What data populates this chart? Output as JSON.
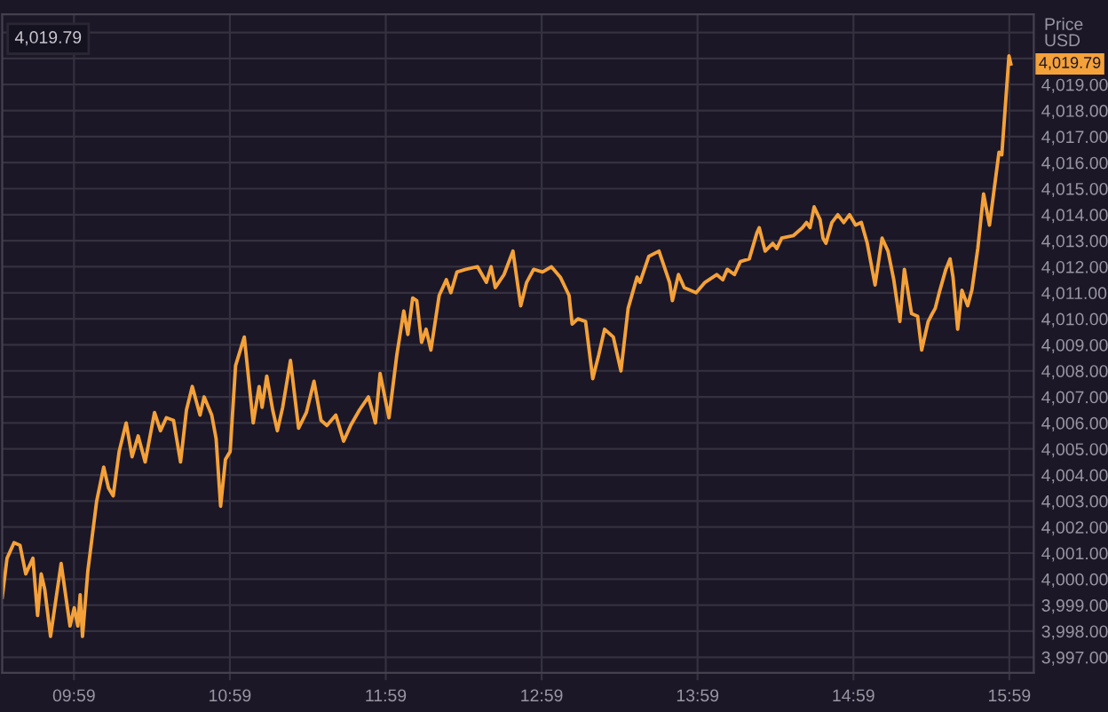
{
  "chart_data": {
    "type": "line",
    "ylabel": "Price\nUSD",
    "annotations": [
      "4,019.79",
      {
        "text": "4,019.79",
        "y": 4019.79
      }
    ],
    "x": [
      9.523,
      9.554,
      9.599,
      9.637,
      9.674,
      9.72,
      9.75,
      9.773,
      9.796,
      9.833,
      9.901,
      9.958,
      9.985,
      10.008,
      10.023,
      10.038,
      10.072,
      10.129,
      10.174,
      10.205,
      10.235,
      10.273,
      10.318,
      10.356,
      10.395,
      10.44,
      10.5,
      10.538,
      10.576,
      10.622,
      10.667,
      10.705,
      10.742,
      10.792,
      10.818,
      10.867,
      10.895,
      10.924,
      10.955,
      10.985,
      11.02,
      11.076,
      11.133,
      11.171,
      11.19,
      11.22,
      11.258,
      11.288,
      11.322,
      11.372,
      11.424,
      11.474,
      11.523,
      11.568,
      11.606,
      11.663,
      11.713,
      11.758,
      11.815,
      11.872,
      11.917,
      11.947,
      12.004,
      12.054,
      12.099,
      12.125,
      12.156,
      12.182,
      12.213,
      12.242,
      12.273,
      12.326,
      12.372,
      12.401,
      12.44,
      12.497,
      12.572,
      12.629,
      12.659,
      12.686,
      12.742,
      12.799,
      12.849,
      12.887,
      12.932,
      12.989,
      13.046,
      13.103,
      13.159,
      13.179,
      13.216,
      13.265,
      13.311,
      13.349,
      13.387,
      13.443,
      13.492,
      13.538,
      13.595,
      13.614,
      13.671,
      13.736,
      13.804,
      13.822,
      13.861,
      13.898,
      13.974,
      14.031,
      14.106,
      14.145,
      14.174,
      14.22,
      14.258,
      14.315,
      14.364,
      14.379,
      14.417,
      14.466,
      14.492,
      14.523,
      14.599,
      14.656,
      14.682,
      14.705,
      14.731,
      14.77,
      14.788,
      14.807,
      14.845,
      14.883,
      14.921,
      14.958,
      14.997,
      15.034,
      15.072,
      15.122,
      15.167,
      15.205,
      15.242,
      15.281,
      15.31,
      15.356,
      15.395,
      15.421,
      15.463,
      15.489,
      15.508,
      15.538,
      15.576,
      15.603,
      15.622,
      15.652,
      15.679,
      15.716,
      15.743,
      15.781,
      15.818,
      15.856,
      15.917,
      15.935,
      15.981,
      15.993
    ],
    "series": [
      {
        "color": "#f4a13a",
        "values": [
          3999.3,
          4000.8,
          4001.4,
          4001.3,
          4000.2,
          4000.8,
          3998.6,
          4000.2,
          3999.6,
          3997.8,
          4000.6,
          3998.2,
          3998.9,
          3998.2,
          3999.4,
          3997.8,
          4000.3,
          4003.0,
          4004.3,
          4003.5,
          4003.2,
          4004.9,
          4006.0,
          4004.7,
          4005.5,
          4004.5,
          4006.4,
          4005.7,
          4006.2,
          4006.1,
          4004.5,
          4006.5,
          4007.4,
          4006.3,
          4007.0,
          4006.3,
          4005.4,
          4002.8,
          4004.6,
          4004.9,
          4008.2,
          4009.3,
          4006.0,
          4007.4,
          4006.6,
          4007.8,
          4006.5,
          4005.7,
          4006.6,
          4008.4,
          4005.8,
          4006.4,
          4007.6,
          4006.1,
          4005.9,
          4006.3,
          4005.3,
          4005.9,
          4006.5,
          4007.0,
          4006.0,
          4007.9,
          4006.2,
          4008.6,
          4010.3,
          4009.4,
          4010.8,
          4010.7,
          4009.1,
          4009.6,
          4008.8,
          4010.9,
          4011.5,
          4011.0,
          4011.8,
          4011.9,
          4012.0,
          4011.4,
          4012.0,
          4011.2,
          4011.7,
          4012.6,
          4010.5,
          4011.4,
          4011.9,
          4011.8,
          4012.0,
          4011.6,
          4010.9,
          4009.8,
          4010.0,
          4009.9,
          4007.7,
          4008.6,
          4009.6,
          4009.3,
          4008.0,
          4010.4,
          4011.6,
          4011.4,
          4012.4,
          4012.6,
          4011.4,
          4010.7,
          4011.7,
          4011.2,
          4011.0,
          4011.4,
          4011.7,
          4011.5,
          4011.9,
          4011.7,
          4012.2,
          4012.3,
          4013.3,
          4013.5,
          4012.6,
          4012.9,
          4012.7,
          4013.1,
          4013.2,
          4013.5,
          4013.7,
          4013.5,
          4014.3,
          4013.8,
          4013.1,
          4012.9,
          4013.7,
          4014.0,
          4013.7,
          4014.0,
          4013.6,
          4013.7,
          4012.9,
          4011.3,
          4013.1,
          4012.6,
          4011.5,
          4009.9,
          4011.9,
          4010.2,
          4010.1,
          4008.8,
          4009.9,
          4010.2,
          4010.4,
          4011.1,
          4011.9,
          4012.3,
          4011.6,
          4009.6,
          4011.1,
          4010.5,
          4011.1,
          4012.7,
          4014.8,
          4013.6,
          4016.4,
          4016.3,
          4020.1,
          4019.79
        ]
      }
    ],
    "xlim": [
      9.523,
      16.14
    ],
    "xticks": [
      {
        "value": 9.9833,
        "label": "09:59"
      },
      {
        "value": 10.9833,
        "label": "10:59"
      },
      {
        "value": 11.9833,
        "label": "11:59"
      },
      {
        "value": 12.9833,
        "label": "12:59"
      },
      {
        "value": 13.9833,
        "label": "13:59"
      },
      {
        "value": 14.9833,
        "label": "14:59"
      },
      {
        "value": 15.9833,
        "label": "15:59"
      }
    ],
    "ylim": [
      3996.4,
      4021.7
    ],
    "yticks": [
      {
        "value": 3997,
        "label": "3,997.00"
      },
      {
        "value": 3998,
        "label": "3,998.00"
      },
      {
        "value": 3999,
        "label": "3,999.00"
      },
      {
        "value": 4000,
        "label": "4,000.00"
      },
      {
        "value": 4001,
        "label": "4,001.00"
      },
      {
        "value": 4002,
        "label": "4,002.00"
      },
      {
        "value": 4003,
        "label": "4,003.00"
      },
      {
        "value": 4004,
        "label": "4,004.00"
      },
      {
        "value": 4005,
        "label": "4,005.00"
      },
      {
        "value": 4006,
        "label": "4,006.00"
      },
      {
        "value": 4007,
        "label": "4,007.00"
      },
      {
        "value": 4008,
        "label": "4,008.00"
      },
      {
        "value": 4009,
        "label": "4,009.00"
      },
      {
        "value": 4010,
        "label": "4,010.00"
      },
      {
        "value": 4011,
        "label": "4,011.00"
      },
      {
        "value": 4012,
        "label": "4,012.00"
      },
      {
        "value": 4013,
        "label": "4,013.00"
      },
      {
        "value": 4014,
        "label": "4,014.00"
      },
      {
        "value": 4015,
        "label": "4,015.00"
      },
      {
        "value": 4016,
        "label": "4,016.00"
      },
      {
        "value": 4017,
        "label": "4,017.00"
      },
      {
        "value": 4018,
        "label": "4,018.00"
      },
      {
        "value": 4019,
        "label": "4,019.00"
      },
      {
        "value": 4020,
        "label": null
      },
      {
        "value": 4021,
        "label": null
      }
    ],
    "grid": true,
    "line_style": "solid"
  }
}
